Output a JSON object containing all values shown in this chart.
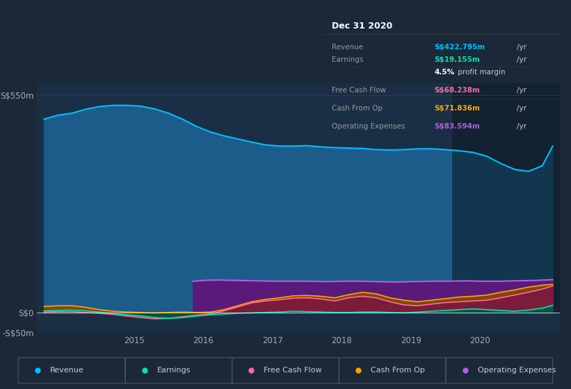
{
  "background_color": "#1b2838",
  "plot_bg_color": "#1a2f45",
  "ylim": [
    -50,
    580
  ],
  "yticks": [
    -50,
    0,
    550
  ],
  "ytick_labels": [
    "-S$50m",
    "S$0",
    "S$550m"
  ],
  "xlim_start": 2013.6,
  "xlim_end": 2021.15,
  "xtick_positions": [
    2015,
    2016,
    2017,
    2018,
    2019,
    2020
  ],
  "legend_items": [
    "Revenue",
    "Earnings",
    "Free Cash Flow",
    "Cash From Op",
    "Operating Expenses"
  ],
  "legend_colors": [
    "#00bfff",
    "#00e5b0",
    "#ff6b9d",
    "#ffa500",
    "#b060e0"
  ],
  "info_box": {
    "title": "Dec 31 2020",
    "rows": [
      {
        "label": "Revenue",
        "value": "S$422.795m",
        "unit": "/yr",
        "value_color": "#00bfff"
      },
      {
        "label": "Earnings",
        "value": "S$19.155m",
        "unit": "/yr",
        "value_color": "#00e5b0"
      },
      {
        "label": "",
        "value": "4.5%",
        "unit": " profit margin",
        "value_color": "#ffffff"
      },
      {
        "label": "Free Cash Flow",
        "value": "S$68.238m",
        "unit": "/yr",
        "value_color": "#ff6b9d"
      },
      {
        "label": "Cash From Op",
        "value": "S$71.836m",
        "unit": "/yr",
        "value_color": "#ffa500"
      },
      {
        "label": "Operating Expenses",
        "value": "S$83.594m",
        "unit": "/yr",
        "value_color": "#b060e0"
      }
    ]
  },
  "revenue_x": [
    2013.7,
    2013.9,
    2014.1,
    2014.3,
    2014.5,
    2014.7,
    2014.9,
    2015.1,
    2015.3,
    2015.5,
    2015.7,
    2015.9,
    2016.1,
    2016.3,
    2016.5,
    2016.7,
    2016.9,
    2017.1,
    2017.3,
    2017.5,
    2017.7,
    2017.9,
    2018.1,
    2018.3,
    2018.5,
    2018.7,
    2018.9,
    2019.1,
    2019.3,
    2019.5,
    2019.7,
    2019.9,
    2020.1,
    2020.3,
    2020.5,
    2020.7,
    2020.9,
    2021.05
  ],
  "revenue_y": [
    490,
    500,
    505,
    515,
    522,
    525,
    525,
    523,
    516,
    505,
    490,
    472,
    458,
    448,
    440,
    432,
    425,
    422,
    422,
    423,
    420,
    418,
    417,
    416,
    413,
    412,
    413,
    415,
    415,
    413,
    410,
    406,
    396,
    378,
    363,
    358,
    372,
    422
  ],
  "earnings_x": [
    2013.7,
    2013.9,
    2014.1,
    2014.3,
    2014.5,
    2014.7,
    2014.9,
    2015.1,
    2015.3,
    2015.5,
    2015.7,
    2015.9,
    2016.1,
    2016.3,
    2016.5,
    2016.7,
    2016.9,
    2017.1,
    2017.3,
    2017.5,
    2017.7,
    2017.9,
    2018.1,
    2018.3,
    2018.5,
    2018.7,
    2018.9,
    2019.1,
    2019.3,
    2019.5,
    2019.7,
    2019.9,
    2020.1,
    2020.3,
    2020.5,
    2020.7,
    2020.9,
    2021.05
  ],
  "earnings_y": [
    5,
    6,
    7,
    5,
    2,
    -2,
    -5,
    -8,
    -12,
    -14,
    -12,
    -8,
    -5,
    -3,
    -1,
    0,
    1,
    2,
    4,
    3,
    2,
    1,
    1,
    2,
    2,
    1,
    0,
    2,
    4,
    6,
    8,
    10,
    8,
    6,
    4,
    7,
    12,
    19
  ],
  "fcf_x": [
    2013.7,
    2013.9,
    2014.1,
    2014.3,
    2014.5,
    2014.7,
    2014.9,
    2015.1,
    2015.3,
    2015.5,
    2015.7,
    2015.9,
    2016.1,
    2016.3,
    2016.5,
    2016.7,
    2016.9,
    2017.1,
    2017.3,
    2017.5,
    2017.7,
    2017.9,
    2018.1,
    2018.3,
    2018.5,
    2018.7,
    2018.9,
    2019.1,
    2019.3,
    2019.5,
    2019.7,
    2019.9,
    2020.1,
    2020.3,
    2020.5,
    2020.7,
    2020.9,
    2021.05
  ],
  "fcf_y": [
    2,
    3,
    3,
    1,
    -1,
    -4,
    -8,
    -12,
    -15,
    -14,
    -10,
    -6,
    -3,
    5,
    15,
    25,
    30,
    33,
    37,
    38,
    35,
    30,
    38,
    42,
    38,
    28,
    20,
    18,
    22,
    26,
    28,
    30,
    32,
    38,
    45,
    52,
    60,
    68
  ],
  "cfop_x": [
    2013.7,
    2013.9,
    2014.1,
    2014.3,
    2014.5,
    2014.7,
    2014.9,
    2015.1,
    2015.3,
    2015.5,
    2015.7,
    2015.9,
    2016.1,
    2016.3,
    2016.5,
    2016.7,
    2016.9,
    2017.1,
    2017.3,
    2017.5,
    2017.7,
    2017.9,
    2018.1,
    2018.3,
    2018.5,
    2018.7,
    2018.9,
    2019.1,
    2019.3,
    2019.5,
    2019.7,
    2019.9,
    2020.1,
    2020.3,
    2020.5,
    2020.7,
    2020.9,
    2021.05
  ],
  "cfop_y": [
    16,
    18,
    18,
    14,
    8,
    4,
    2,
    1,
    0,
    1,
    2,
    1,
    2,
    8,
    18,
    28,
    34,
    38,
    43,
    44,
    42,
    38,
    46,
    52,
    48,
    38,
    32,
    28,
    32,
    36,
    40,
    42,
    45,
    52,
    58,
    65,
    70,
    72
  ],
  "opex_x": [
    2015.85,
    2016.0,
    2016.2,
    2016.5,
    2016.8,
    2017.0,
    2017.3,
    2017.5,
    2017.8,
    2018.0,
    2018.3,
    2018.5,
    2018.8,
    2019.0,
    2019.3,
    2019.5,
    2019.8,
    2020.0,
    2020.3,
    2020.5,
    2020.8,
    2021.05
  ],
  "opex_y": [
    80,
    82,
    83,
    82,
    81,
    80,
    80,
    80,
    79,
    80,
    80,
    79,
    78,
    79,
    80,
    80,
    81,
    80,
    80,
    81,
    82,
    84
  ]
}
